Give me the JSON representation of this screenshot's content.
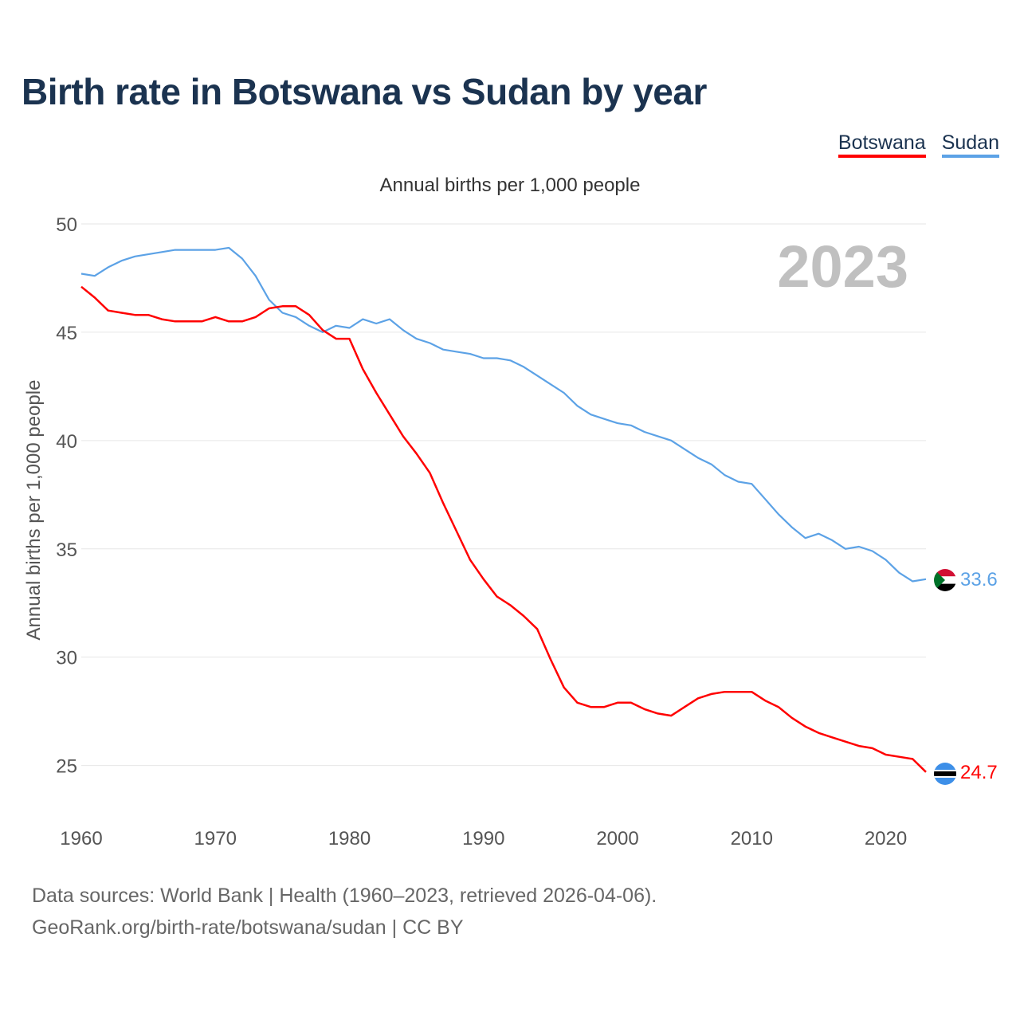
{
  "chart_data": {
    "type": "line",
    "title": "Birth rate in Botswana vs Sudan by year",
    "subtitle": "Annual births per 1,000 people",
    "ylabel": "Annual births per 1,000 people",
    "xlabel": "",
    "xlim": [
      1960,
      2023
    ],
    "ylim": [
      22.3,
      50
    ],
    "yticks": [
      "25",
      "30",
      "35",
      "40",
      "45",
      "50"
    ],
    "xticks": [
      "1960",
      "1970",
      "1980",
      "1990",
      "2000",
      "2010",
      "2020"
    ],
    "grid": true,
    "legend_position": "top-right",
    "year_label": "2023",
    "x": [
      1960,
      1961,
      1962,
      1963,
      1964,
      1965,
      1966,
      1967,
      1968,
      1969,
      1970,
      1971,
      1972,
      1973,
      1974,
      1975,
      1976,
      1977,
      1978,
      1979,
      1980,
      1981,
      1982,
      1983,
      1984,
      1985,
      1986,
      1987,
      1988,
      1989,
      1990,
      1991,
      1992,
      1993,
      1994,
      1995,
      1996,
      1997,
      1998,
      1999,
      2000,
      2001,
      2002,
      2003,
      2004,
      2005,
      2006,
      2007,
      2008,
      2009,
      2010,
      2011,
      2012,
      2013,
      2014,
      2015,
      2016,
      2017,
      2018,
      2019,
      2020,
      2021,
      2022,
      2023
    ],
    "series": [
      {
        "name": "Botswana",
        "color": "#ff0000",
        "end_label": "24.7",
        "values": [
          47.1,
          46.6,
          46.0,
          45.9,
          45.8,
          45.8,
          45.6,
          45.5,
          45.5,
          45.5,
          45.7,
          45.5,
          45.5,
          45.7,
          46.1,
          46.2,
          46.2,
          45.8,
          45.1,
          44.7,
          44.7,
          43.3,
          42.2,
          41.2,
          40.2,
          39.4,
          38.5,
          37.1,
          35.8,
          34.5,
          33.6,
          32.8,
          32.4,
          31.9,
          31.3,
          29.9,
          28.6,
          27.9,
          27.7,
          27.7,
          27.9,
          27.9,
          27.6,
          27.4,
          27.3,
          27.7,
          28.1,
          28.3,
          28.4,
          28.4,
          28.4,
          28.0,
          27.7,
          27.2,
          26.8,
          26.5,
          26.3,
          26.1,
          25.9,
          25.8,
          25.5,
          25.4,
          25.3,
          24.7
        ]
      },
      {
        "name": "Sudan",
        "color": "#5ca2e6",
        "end_label": "33.6",
        "values": [
          47.7,
          47.6,
          48.0,
          48.3,
          48.5,
          48.6,
          48.7,
          48.8,
          48.8,
          48.8,
          48.8,
          48.9,
          48.4,
          47.6,
          46.5,
          45.9,
          45.7,
          45.3,
          45.0,
          45.3,
          45.2,
          45.6,
          45.4,
          45.6,
          45.1,
          44.7,
          44.5,
          44.2,
          44.1,
          44.0,
          43.8,
          43.8,
          43.7,
          43.4,
          43.0,
          42.6,
          42.2,
          41.6,
          41.2,
          41.0,
          40.8,
          40.7,
          40.4,
          40.2,
          40.0,
          39.6,
          39.2,
          38.9,
          38.4,
          38.1,
          38.0,
          37.3,
          36.6,
          36.0,
          35.5,
          35.7,
          35.4,
          35.0,
          35.1,
          34.9,
          34.5,
          33.9,
          33.5,
          33.6
        ]
      }
    ]
  },
  "footer": {
    "line1": "Data sources: World Bank | Health (1960–2023, retrieved 2026-04-06).",
    "line2": "GeoRank.org/birth-rate/botswana/sudan | CC BY"
  }
}
